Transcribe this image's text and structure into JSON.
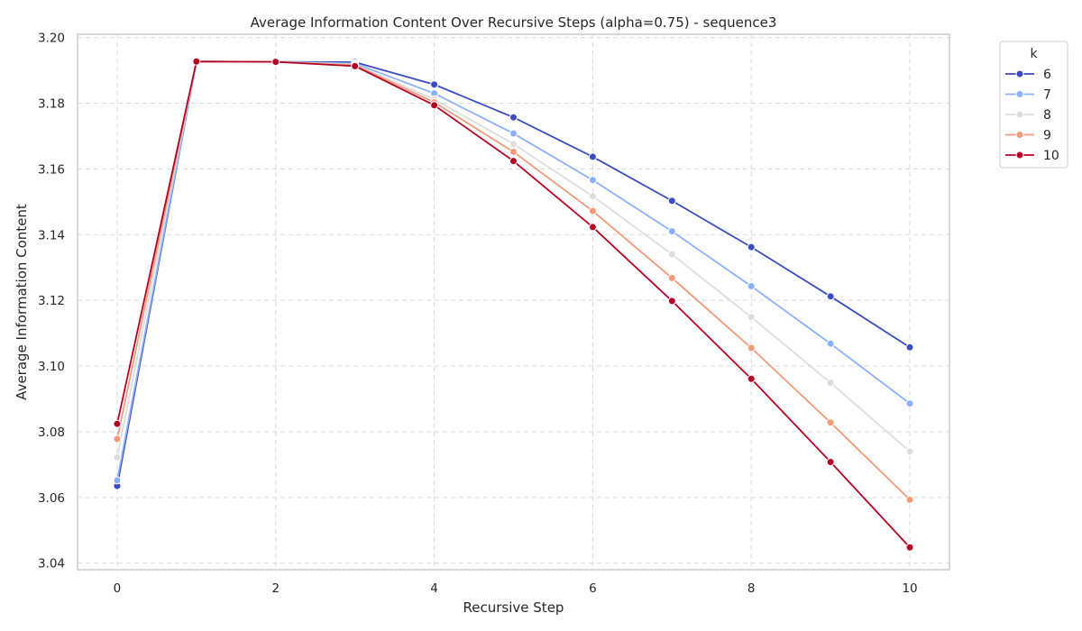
{
  "chart_data": {
    "type": "line",
    "title": "Average Information Content Over Recursive Steps (alpha=0.75) - sequence3",
    "xlabel": "Recursive Step",
    "ylabel": "Average Information Content",
    "xlim": [
      -0.5,
      10.5
    ],
    "ylim": [
      3.038,
      3.201
    ],
    "xticks": [
      0,
      2,
      4,
      6,
      8,
      10
    ],
    "xtick_labels": [
      "0",
      "2",
      "4",
      "6",
      "8",
      "10"
    ],
    "yticks": [
      3.04,
      3.06,
      3.08,
      3.1,
      3.12,
      3.14,
      3.16,
      3.18,
      3.2
    ],
    "ytick_labels": [
      "3.04",
      "3.06",
      "3.08",
      "3.10",
      "3.12",
      "3.14",
      "3.16",
      "3.18",
      "3.20"
    ],
    "grid": true,
    "legend": {
      "title": "k",
      "placement": "outside-top-right"
    },
    "x": [
      0,
      1,
      2,
      3,
      4,
      5,
      6,
      7,
      8,
      9,
      10
    ],
    "series": [
      {
        "name": "6",
        "color": "#3b4cc0",
        "values": [
          3.0635,
          3.1927,
          3.1926,
          3.1925,
          3.1857,
          3.1757,
          3.1637,
          3.1503,
          3.1362,
          3.1212,
          3.1057
        ]
      },
      {
        "name": "7",
        "color": "#8db0fe",
        "values": [
          3.0652,
          3.1927,
          3.1926,
          3.1921,
          3.183,
          3.1708,
          3.1566,
          3.141,
          3.1243,
          3.1068,
          3.0886
        ]
      },
      {
        "name": "8",
        "color": "#dddddd",
        "values": [
          3.0722,
          3.1927,
          3.1926,
          3.1918,
          3.1812,
          3.1676,
          3.1517,
          3.134,
          3.1149,
          3.0949,
          3.074
        ]
      },
      {
        "name": "9",
        "color": "#f49a7b",
        "values": [
          3.0778,
          3.1927,
          3.1926,
          3.1916,
          3.1803,
          3.1652,
          3.1472,
          3.1268,
          3.1055,
          3.0828,
          3.0593
        ]
      },
      {
        "name": "10",
        "color": "#b40426",
        "values": [
          3.0824,
          3.1927,
          3.1926,
          3.1913,
          3.1794,
          3.1624,
          3.1423,
          3.1198,
          3.0961,
          3.0708,
          3.0448
        ]
      }
    ]
  }
}
